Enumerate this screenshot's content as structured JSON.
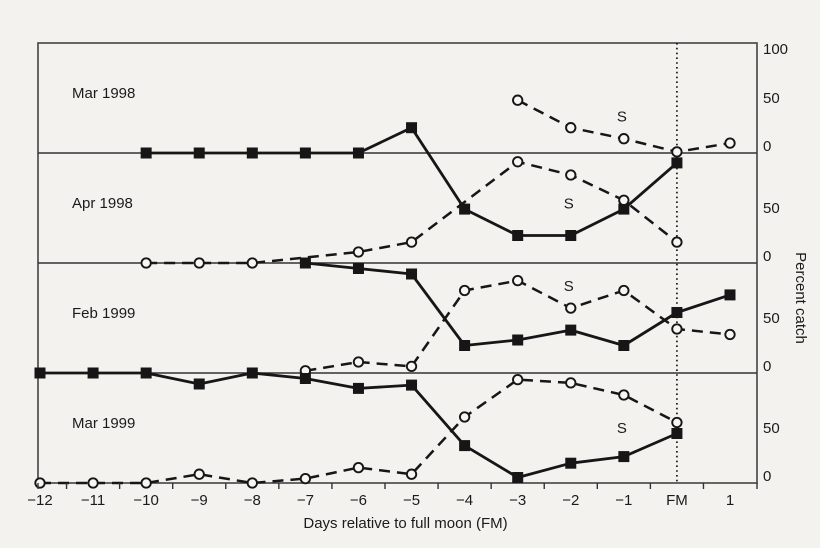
{
  "figure": {
    "background": "#f3f2ef",
    "ink": "#161616",
    "frame_color": "#4d4d4d",
    "separator_color": "#333333",
    "marker_fill": "#f7f6f3"
  },
  "chart_data": {
    "type": "line",
    "title": "",
    "xlabel": "Days relative to full moon (FM)",
    "ylabel": "Percent catch",
    "x_categories": [
      "-12",
      "-11",
      "-10",
      "-9",
      "-8",
      "-7",
      "-6",
      "-5",
      "-4",
      "-3",
      "-2",
      "-1",
      "FM",
      "1"
    ],
    "fm_line_at": "FM",
    "y_axis": {
      "per_panel_range": [
        0,
        100
      ],
      "top_label": "100",
      "mid_label": "50",
      "zero_label": "0"
    },
    "legend": {
      "solid_squares": "solid line, filled squares",
      "dashed_circles": "dashed line, open circles (S = spawning period)"
    },
    "s_text": "S",
    "panels": [
      {
        "label": "Mar 1998",
        "s_marker": {
          "day": "-1",
          "value": 33
        },
        "series": [
          {
            "name": "solid-squares",
            "style": "solid",
            "marker": "square",
            "points": [
              {
                "day": "-10",
                "value": 0
              },
              {
                "day": "-9",
                "value": 0
              },
              {
                "day": "-8",
                "value": 0
              },
              {
                "day": "-7",
                "value": 0
              },
              {
                "day": "-6",
                "value": 0
              },
              {
                "day": "-5",
                "value": 23
              }
            ]
          },
          {
            "name": "dashed-circles",
            "style": "dashed",
            "marker": "circle",
            "points": [
              {
                "day": "-3",
                "value": 48
              },
              {
                "day": "-2",
                "value": 23
              },
              {
                "day": "-1",
                "value": 13
              },
              {
                "day": "FM",
                "value": 1
              },
              {
                "day": "1",
                "value": 9
              }
            ]
          }
        ]
      },
      {
        "label": "Apr 1998",
        "s_marker": {
          "day": "-2",
          "value": 54
        },
        "series": [
          {
            "name": "solid-squares",
            "style": "solid",
            "marker": "square",
            "points": [
              {
                "day": "-4",
                "value": 49
              },
              {
                "day": "-3",
                "value": 25
              },
              {
                "day": "-2",
                "value": 25
              },
              {
                "day": "-1",
                "value": 49
              },
              {
                "day": "FM",
                "value": 91
              }
            ]
          },
          {
            "name": "dashed-circles",
            "style": "dashed",
            "marker": "circle",
            "points": [
              {
                "day": "-10",
                "value": 0
              },
              {
                "day": "-9",
                "value": 0
              },
              {
                "day": "-8",
                "value": 0
              },
              {
                "day": "-6",
                "value": 10
              },
              {
                "day": "-5",
                "value": 19
              },
              {
                "day": "-3",
                "value": 92
              },
              {
                "day": "-2",
                "value": 80
              },
              {
                "day": "-1",
                "value": 57
              },
              {
                "day": "FM",
                "value": 19
              }
            ]
          }
        ]
      },
      {
        "label": "Feb 1999",
        "s_marker": {
          "day": "-2",
          "value": 79
        },
        "series": [
          {
            "name": "solid-squares",
            "style": "solid",
            "marker": "square",
            "points": [
              {
                "day": "-7",
                "value": 100
              },
              {
                "day": "-6",
                "value": 95
              },
              {
                "day": "-5",
                "value": 90
              },
              {
                "day": "-4",
                "value": 25
              },
              {
                "day": "-3",
                "value": 30
              },
              {
                "day": "-2",
                "value": 39
              },
              {
                "day": "-1",
                "value": 25
              },
              {
                "day": "FM",
                "value": 55
              },
              {
                "day": "1",
                "value": 71
              }
            ]
          },
          {
            "name": "dashed-circles",
            "style": "dashed",
            "marker": "circle",
            "points": [
              {
                "day": "-7",
                "value": 2
              },
              {
                "day": "-6",
                "value": 10
              },
              {
                "day": "-5",
                "value": 6
              },
              {
                "day": "-4",
                "value": 75
              },
              {
                "day": "-3",
                "value": 84
              },
              {
                "day": "-2",
                "value": 59
              },
              {
                "day": "-1",
                "value": 75
              },
              {
                "day": "FM",
                "value": 40
              },
              {
                "day": "1",
                "value": 35
              }
            ]
          }
        ]
      },
      {
        "label": "Mar 1999",
        "s_marker": {
          "day": "-1",
          "value": 50
        },
        "series": [
          {
            "name": "solid-squares",
            "style": "solid",
            "marker": "square",
            "points": [
              {
                "day": "-12",
                "value": 100
              },
              {
                "day": "-11",
                "value": 100
              },
              {
                "day": "-10",
                "value": 100
              },
              {
                "day": "-9",
                "value": 90
              },
              {
                "day": "-8",
                "value": 100
              },
              {
                "day": "-7",
                "value": 95
              },
              {
                "day": "-6",
                "value": 86
              },
              {
                "day": "-5",
                "value": 89
              },
              {
                "day": "-4",
                "value": 34
              },
              {
                "day": "-3",
                "value": 5
              },
              {
                "day": "-2",
                "value": 18
              },
              {
                "day": "-1",
                "value": 24
              },
              {
                "day": "FM",
                "value": 45
              }
            ]
          },
          {
            "name": "dashed-circles",
            "style": "dashed",
            "marker": "circle",
            "points": [
              {
                "day": "-12",
                "value": 0
              },
              {
                "day": "-11",
                "value": 0
              },
              {
                "day": "-10",
                "value": 0
              },
              {
                "day": "-9",
                "value": 8
              },
              {
                "day": "-8",
                "value": 0
              },
              {
                "day": "-7",
                "value": 4
              },
              {
                "day": "-6",
                "value": 14
              },
              {
                "day": "-5",
                "value": 8
              },
              {
                "day": "-4",
                "value": 60
              },
              {
                "day": "-3",
                "value": 94
              },
              {
                "day": "-2",
                "value": 91
              },
              {
                "day": "-1",
                "value": 80
              },
              {
                "day": "FM",
                "value": 55
              }
            ]
          }
        ]
      }
    ],
    "connectors": [
      {
        "from_panel": 0,
        "from_series": "solid-squares",
        "to_panel": 1,
        "to_series": "solid-squares"
      }
    ]
  }
}
